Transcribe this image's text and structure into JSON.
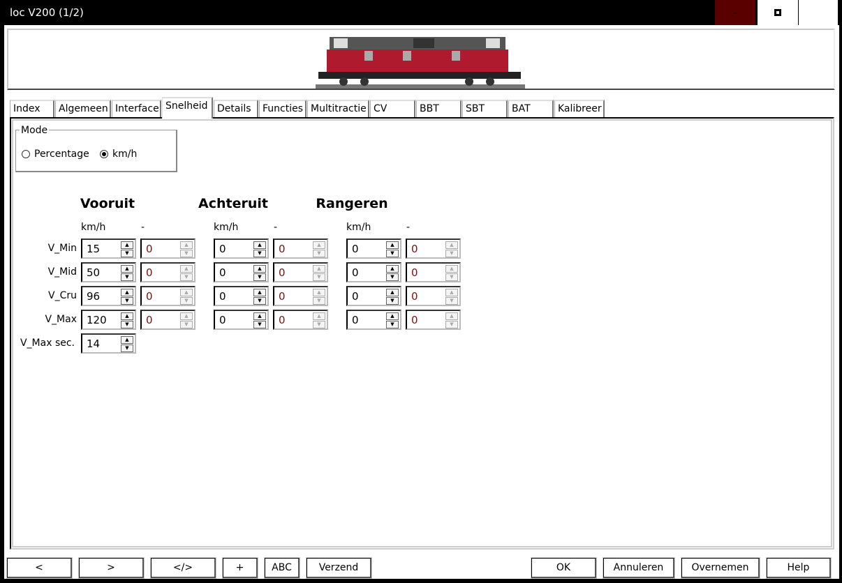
{
  "window": {
    "title": "loc V200 (1/2)",
    "controls": {
      "minimize": "–",
      "maximize": "■",
      "close": "X"
    },
    "minimize_color": "#5a0000"
  },
  "tabs": [
    "Index",
    "Algemeen",
    "Interface",
    "Snelheid",
    "Details",
    "Functies",
    "Multitractie",
    "CV",
    "BBT",
    "SBT",
    "BAT",
    "Kalibreer"
  ],
  "active_tab": "Snelheid",
  "mode": {
    "legend": "Mode",
    "options": [
      "Percentage",
      "km/h"
    ],
    "selected": "km/h"
  },
  "sections": [
    {
      "title": "Vooruit",
      "unit1": "km/h",
      "unit2": "-",
      "values": [
        [
          "15",
          "0"
        ],
        [
          "50",
          "0"
        ],
        [
          "96",
          "0"
        ],
        [
          "120",
          "0"
        ]
      ]
    },
    {
      "title": "Achteruit",
      "unit1": "km/h",
      "unit2": "-",
      "values": [
        [
          "0",
          "0"
        ],
        [
          "0",
          "0"
        ],
        [
          "0",
          "0"
        ],
        [
          "0",
          "0"
        ]
      ]
    },
    {
      "title": "Rangeren",
      "unit1": "km/h",
      "unit2": "-",
      "values": [
        [
          "0",
          "0"
        ],
        [
          "0",
          "0"
        ],
        [
          "0",
          "0"
        ],
        [
          "0",
          "0"
        ]
      ]
    }
  ],
  "rows": [
    "V_Min",
    "V_Mid",
    "V_Cru",
    "V_Max"
  ],
  "vmax_sec": {
    "label": "V_Max sec.",
    "value": "14"
  },
  "buttons": {
    "prev": "<",
    "next": ">",
    "code": "</>",
    "plus": "+",
    "abc": "ABC",
    "send": "Verzend",
    "ok": "OK",
    "cancel": "Annuleren",
    "apply": "Overnemen",
    "help": "Help"
  },
  "accent_locomotive": "#b01a2e"
}
